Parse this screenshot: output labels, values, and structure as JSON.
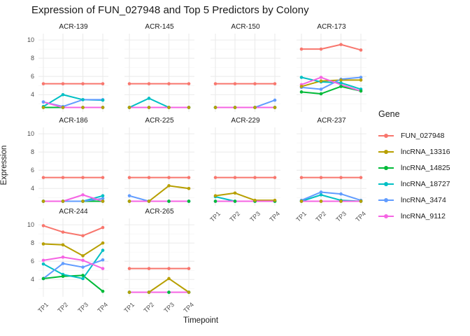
{
  "title": "Expression of FUN_027948 and Top 5 Predictors by Colony",
  "chart_data": {
    "type": "line",
    "facet_by": "Colony",
    "x": [
      "TP1",
      "TP2",
      "TP3",
      "TP4"
    ],
    "xlabel": "Timepoint",
    "ylabel": "Expression",
    "ylim": [
      2.1,
      10.7
    ],
    "yticks_major": [
      4,
      6,
      8,
      10
    ],
    "yticks_minor": [
      3,
      5,
      7,
      9
    ],
    "grid": "major+minor, light gray on white, no panel border",
    "legend_title": "Gene",
    "legend_position": "right",
    "series": [
      {
        "name": "FUN_027948",
        "color": "#F8766D"
      },
      {
        "name": "lncRNA_13316",
        "color": "#B79F00"
      },
      {
        "name": "lncRNA_14825",
        "color": "#00BA38"
      },
      {
        "name": "lncRNA_18727",
        "color": "#00BFC4"
      },
      {
        "name": "lncRNA_3474",
        "color": "#619CFF"
      },
      {
        "name": "lncRNA_9112",
        "color": "#F564E3"
      }
    ],
    "facets": [
      {
        "label": "ACR-139",
        "row": 0,
        "col": 0,
        "show_x": false,
        "show_y": true,
        "values": {
          "FUN_027948": [
            5.2,
            5.2,
            5.2,
            5.2
          ],
          "lncRNA_13316": [
            2.6,
            2.6,
            2.6,
            2.6
          ],
          "lncRNA_14825": [
            2.6,
            2.6,
            2.6,
            2.6
          ],
          "lncRNA_18727": [
            2.7,
            4.0,
            3.45,
            3.4
          ],
          "lncRNA_3474": [
            3.2,
            2.7,
            3.45,
            3.45
          ],
          "lncRNA_9112": [
            3.2,
            2.6,
            2.6,
            2.6
          ]
        }
      },
      {
        "label": "ACR-145",
        "row": 0,
        "col": 1,
        "show_x": false,
        "show_y": false,
        "values": {
          "FUN_027948": [
            5.2,
            5.2,
            5.2,
            5.2
          ],
          "lncRNA_13316": [
            2.6,
            2.6,
            2.6,
            2.6
          ],
          "lncRNA_14825": [
            2.6,
            2.6,
            2.6,
            2.6
          ],
          "lncRNA_18727": [
            2.6,
            3.6,
            2.6,
            2.6
          ],
          "lncRNA_3474": [
            2.6,
            2.6,
            2.6,
            2.6
          ],
          "lncRNA_9112": [
            2.6,
            2.6,
            2.6,
            2.6
          ]
        }
      },
      {
        "label": "ACR-150",
        "row": 0,
        "col": 2,
        "show_x": false,
        "show_y": false,
        "values": {
          "FUN_027948": [
            5.2,
            5.2,
            5.2,
            5.2
          ],
          "lncRNA_13316": [
            2.6,
            2.6,
            2.6,
            2.6
          ],
          "lncRNA_14825": [
            2.6,
            2.6,
            2.6,
            2.6
          ],
          "lncRNA_18727": [
            2.6,
            2.6,
            2.6,
            2.6
          ],
          "lncRNA_3474": [
            2.6,
            2.6,
            2.6,
            3.4
          ],
          "lncRNA_9112": [
            2.6,
            2.6,
            2.6,
            2.6
          ]
        }
      },
      {
        "label": "ACR-173",
        "row": 0,
        "col": 3,
        "show_x": false,
        "show_y": false,
        "values": {
          "FUN_027948": [
            9.0,
            9.0,
            9.5,
            8.9
          ],
          "lncRNA_13316": [
            4.9,
            5.5,
            5.6,
            5.6
          ],
          "lncRNA_14825": [
            4.3,
            4.1,
            4.9,
            4.4
          ],
          "lncRNA_18727": [
            5.9,
            5.4,
            5.3,
            4.6
          ],
          "lncRNA_3474": [
            4.8,
            4.6,
            5.7,
            5.9
          ],
          "lncRNA_9112": [
            5.1,
            5.9,
            5.1,
            4.4
          ]
        }
      },
      {
        "label": "ACR-186",
        "row": 1,
        "col": 0,
        "show_x": false,
        "show_y": true,
        "values": {
          "FUN_027948": [
            5.2,
            5.2,
            5.2,
            5.2
          ],
          "lncRNA_13316": [
            2.6,
            2.6,
            2.6,
            2.6
          ],
          "lncRNA_14825": [
            2.6,
            2.6,
            2.6,
            2.6
          ],
          "lncRNA_18727": [
            2.6,
            2.6,
            2.6,
            3.2
          ],
          "lncRNA_3474": [
            2.6,
            2.6,
            2.6,
            2.9
          ],
          "lncRNA_9112": [
            2.6,
            2.6,
            3.3,
            2.6
          ]
        }
      },
      {
        "label": "ACR-225",
        "row": 1,
        "col": 1,
        "show_x": false,
        "show_y": false,
        "values": {
          "FUN_027948": [
            5.2,
            5.2,
            5.2,
            5.2
          ],
          "lncRNA_13316": [
            2.6,
            2.6,
            4.3,
            4.0
          ],
          "lncRNA_14825": [
            2.6,
            2.6,
            2.6,
            2.6
          ],
          "lncRNA_18727": [
            2.6,
            2.6,
            2.6,
            2.6
          ],
          "lncRNA_3474": [
            3.2,
            2.6,
            2.6,
            2.6
          ],
          "lncRNA_9112": [
            2.6,
            2.6,
            2.6,
            2.6
          ]
        }
      },
      {
        "label": "ACR-229",
        "row": 1,
        "col": 2,
        "show_x": true,
        "show_y": false,
        "values": {
          "FUN_027948": [
            5.2,
            5.2,
            5.2,
            5.2
          ],
          "lncRNA_13316": [
            3.2,
            3.5,
            2.7,
            2.7
          ],
          "lncRNA_14825": [
            2.6,
            2.6,
            2.6,
            2.6
          ],
          "lncRNA_18727": [
            3.1,
            2.6,
            2.6,
            2.6
          ],
          "lncRNA_3474": [
            2.6,
            2.6,
            2.6,
            2.6
          ],
          "lncRNA_9112": [
            2.6,
            2.6,
            2.6,
            2.6
          ]
        }
      },
      {
        "label": "ACR-237",
        "row": 1,
        "col": 3,
        "show_x": true,
        "show_y": false,
        "values": {
          "FUN_027948": [
            5.2,
            5.2,
            5.2,
            5.2
          ],
          "lncRNA_13316": [
            2.6,
            2.6,
            2.6,
            2.6
          ],
          "lncRNA_14825": [
            2.6,
            2.6,
            2.6,
            2.6
          ],
          "lncRNA_18727": [
            2.6,
            3.3,
            2.7,
            2.6
          ],
          "lncRNA_3474": [
            2.7,
            3.6,
            3.4,
            2.7
          ],
          "lncRNA_9112": [
            2.6,
            2.6,
            2.6,
            2.6
          ]
        }
      },
      {
        "label": "ACR-244",
        "row": 2,
        "col": 0,
        "show_x": true,
        "show_y": true,
        "values": {
          "FUN_027948": [
            9.9,
            9.2,
            8.8,
            9.7
          ],
          "lncRNA_13316": [
            7.9,
            7.8,
            6.6,
            8.0
          ],
          "lncRNA_14825": [
            4.1,
            4.35,
            4.45,
            2.7
          ],
          "lncRNA_18727": [
            5.7,
            4.55,
            4.1,
            7.2
          ],
          "lncRNA_3474": [
            4.1,
            5.75,
            5.35,
            6.15
          ],
          "lncRNA_9112": [
            6.1,
            6.45,
            6.1,
            5.2
          ]
        }
      },
      {
        "label": "ACR-265",
        "row": 2,
        "col": 1,
        "show_x": true,
        "show_y": false,
        "values": {
          "FUN_027948": [
            5.2,
            5.2,
            5.2,
            5.2
          ],
          "lncRNA_13316": [
            2.6,
            2.6,
            4.1,
            2.6
          ],
          "lncRNA_14825": [
            2.6,
            2.6,
            2.6,
            2.6
          ],
          "lncRNA_18727": [
            2.6,
            2.6,
            2.6,
            2.6
          ],
          "lncRNA_3474": [
            2.6,
            2.6,
            2.6,
            2.6
          ],
          "lncRNA_9112": [
            2.6,
            2.6,
            2.6,
            2.6
          ]
        }
      }
    ]
  }
}
